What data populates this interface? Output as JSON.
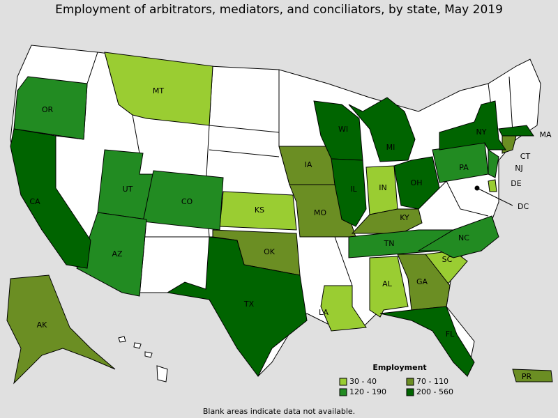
{
  "title": "Employment of arbitrators, mediators, and conciliators, by state, May 2019",
  "legend": {
    "title": "Employment",
    "items": [
      {
        "label": "30 - 40",
        "color": "#9acd32",
        "states": [
          "MT",
          "KS",
          "IN",
          "AL",
          "LA",
          "SC",
          "DE"
        ]
      },
      {
        "label": "70 - 110",
        "color": "#6b8e23",
        "states": [
          "AK",
          "IA",
          "MO",
          "OK",
          "KY",
          "GA",
          "CT",
          "PR"
        ]
      },
      {
        "label": "120 - 190",
        "color": "#228b22",
        "states": [
          "OR",
          "UT",
          "CO",
          "AZ",
          "PA",
          "NJ",
          "TN",
          "NC"
        ]
      },
      {
        "label": "200 - 560",
        "color": "#006400",
        "states": [
          "CA",
          "TX",
          "FL",
          "NY",
          "MA",
          "WI",
          "MI",
          "IL",
          "OH"
        ]
      }
    ]
  },
  "dc_label": "DC",
  "footnote": "Blank areas indicate data not available."
}
